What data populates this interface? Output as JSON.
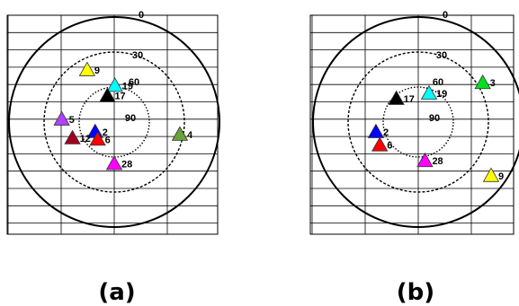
{
  "panels": [
    {
      "id": "a",
      "caption": "(a)",
      "ring_labels": {
        "outer": "0",
        "middle": "30",
        "inner": "60",
        "center": "90"
      },
      "satellites": [
        {
          "prn": "9",
          "color": "#ffff00",
          "az": 333,
          "el": 39
        },
        {
          "prn": "19",
          "color": "#00ffff",
          "az": 1,
          "el": 58
        },
        {
          "prn": "17",
          "color": "#000000",
          "az": 346,
          "el": 66
        },
        {
          "prn": "5",
          "color": "#b041ff",
          "az": 274,
          "el": 45
        },
        {
          "prn": "2",
          "color": "#0000ff",
          "az": 245,
          "el": 72
        },
        {
          "prn": "12",
          "color": "#a00020",
          "az": 250,
          "el": 52
        },
        {
          "prn": "6",
          "color": "#ff0000",
          "az": 225,
          "el": 70
        },
        {
          "prn": "4",
          "color": "#6aa23a",
          "az": 100,
          "el": 33
        },
        {
          "prn": "28",
          "color": "#ff00ff",
          "az": 180,
          "el": 55
        }
      ]
    },
    {
      "id": "b",
      "caption": "(b)",
      "ring_labels": {
        "outer": "0",
        "middle": "30",
        "inner": "60",
        "center": "90"
      },
      "satellites": [
        {
          "prn": "3",
          "color": "#00e020",
          "az": 58,
          "el": 25
        },
        {
          "prn": "19",
          "color": "#00ffff",
          "az": 20,
          "el": 63
        },
        {
          "prn": "17",
          "color": "#000000",
          "az": 318,
          "el": 62
        },
        {
          "prn": "2",
          "color": "#0000ff",
          "az": 258,
          "el": 53
        },
        {
          "prn": "6",
          "color": "#ff0000",
          "az": 240,
          "el": 52
        },
        {
          "prn": "28",
          "color": "#ff00ff",
          "az": 170,
          "el": 57
        },
        {
          "prn": "9",
          "color": "#ffff00",
          "az": 126,
          "el": 13
        }
      ]
    }
  ]
}
